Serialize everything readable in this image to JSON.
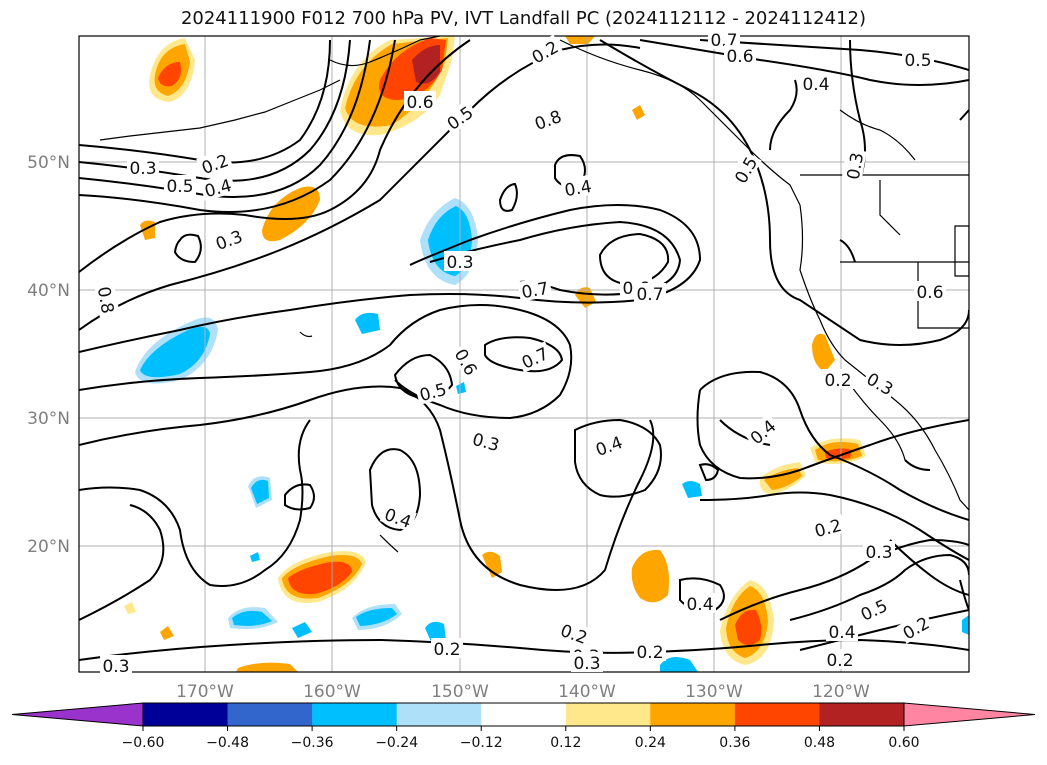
{
  "title": "2024111900 F012 700 hPa PV, IVT Landfall PC (2024112112 - 2024112412)",
  "map": {
    "lat_labels": [
      "50°N",
      "40°N",
      "30°N",
      "20°N"
    ],
    "lon_labels": [
      "170°W",
      "160°W",
      "150°W",
      "140°W",
      "130°W",
      "120°W"
    ],
    "contour_labels": [
      "0.7",
      "0.6",
      "0.5",
      "0.4",
      "0.3",
      "0.2",
      "0.5",
      "0.4",
      "0.3",
      "0.2",
      "0.5",
      "0.6",
      "0.8",
      "0.4",
      "0.3",
      "0.7",
      "0.6",
      "0.7",
      "0.8",
      "0.6",
      "0.7",
      "0.5",
      "0.3",
      "0.4",
      "0.5",
      "0.3",
      "0.6",
      "0.2",
      "0.3",
      "0.4",
      "0.4",
      "0.3",
      "0.2",
      "0.3",
      "0.5",
      "0.4",
      "0.2",
      "0.2",
      "0.2",
      "0.3",
      "0.4",
      "0.2",
      "0.2",
      "0.3",
      "0.2"
    ]
  },
  "colorbar": {
    "ticks": [
      "−0.60",
      "−0.48",
      "−0.36",
      "−0.24",
      "−0.12",
      "0.12",
      "0.24",
      "0.36",
      "0.48",
      "0.60"
    ],
    "colors": [
      "#9933cc",
      "#000099",
      "#3366cc",
      "#00bfff",
      "#aee0fa",
      "#ffffff",
      "#ffe88c",
      "#ffa500",
      "#ff4500",
      "#b22222",
      "#ff85a2"
    ]
  }
}
